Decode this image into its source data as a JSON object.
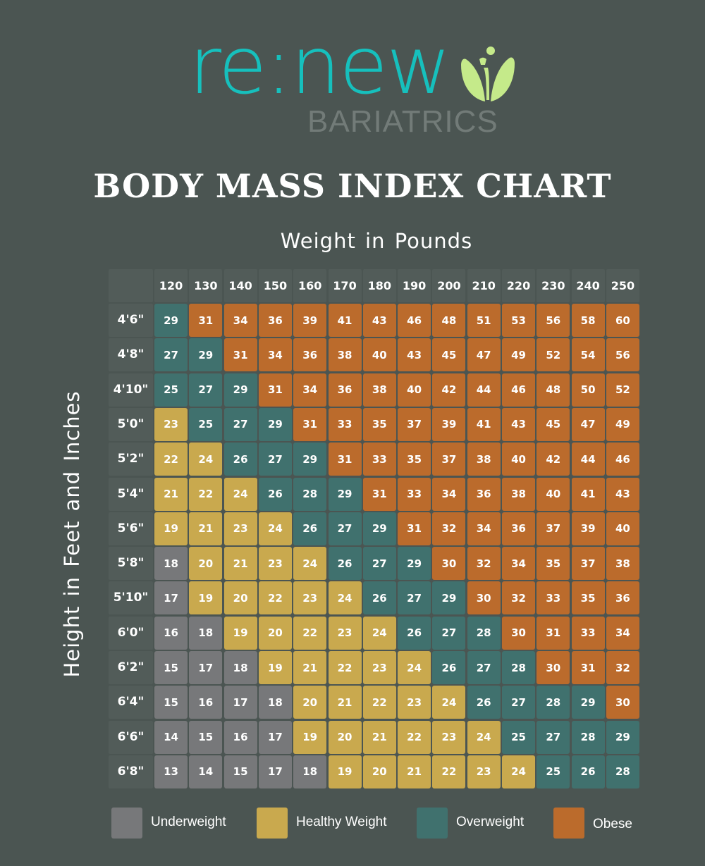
{
  "brand": {
    "name": "re:new",
    "subtitle": "BARIATRICS",
    "logo_icon": "sprout-leaves-icon",
    "colors": {
      "teal": "#16c0bd",
      "gray": "#727b78",
      "leaf": "#c5ea8a"
    }
  },
  "chart_data": {
    "type": "heatmap",
    "title": "BODY MASS INDEX CHART",
    "xlabel": "Weight in Pounds",
    "ylabel": "Height in Feet and Inches",
    "x": [
      "120",
      "130",
      "140",
      "150",
      "160",
      "170",
      "180",
      "190",
      "200",
      "210",
      "220",
      "230",
      "240",
      "250"
    ],
    "y": [
      "4'6\"",
      "4'8\"",
      "4'10\"",
      "5'0\"",
      "5'2\"",
      "5'4\"",
      "5'6\"",
      "5'8\"",
      "5'10\"",
      "6'0\"",
      "6'2\"",
      "6'4\"",
      "6'6\"",
      "6'8\""
    ],
    "values": [
      [
        29,
        31,
        34,
        36,
        39,
        41,
        43,
        46,
        48,
        51,
        53,
        56,
        58,
        60
      ],
      [
        27,
        29,
        31,
        34,
        36,
        38,
        40,
        43,
        45,
        47,
        49,
        52,
        54,
        56
      ],
      [
        25,
        27,
        29,
        31,
        34,
        36,
        38,
        40,
        42,
        44,
        46,
        48,
        50,
        52
      ],
      [
        23,
        25,
        27,
        29,
        31,
        33,
        35,
        37,
        39,
        41,
        43,
        45,
        47,
        49
      ],
      [
        22,
        24,
        26,
        27,
        29,
        31,
        33,
        35,
        37,
        38,
        40,
        42,
        44,
        46
      ],
      [
        21,
        22,
        24,
        26,
        28,
        29,
        31,
        33,
        34,
        36,
        38,
        40,
        41,
        43
      ],
      [
        19,
        21,
        23,
        24,
        26,
        27,
        29,
        31,
        32,
        34,
        36,
        37,
        39,
        40
      ],
      [
        18,
        20,
        21,
        23,
        24,
        26,
        27,
        29,
        30,
        32,
        34,
        35,
        37,
        38
      ],
      [
        17,
        19,
        20,
        22,
        23,
        24,
        26,
        27,
        29,
        30,
        32,
        33,
        35,
        36
      ],
      [
        16,
        18,
        19,
        20,
        22,
        23,
        24,
        26,
        27,
        28,
        30,
        31,
        33,
        34
      ],
      [
        15,
        17,
        18,
        19,
        21,
        22,
        23,
        24,
        26,
        27,
        28,
        30,
        31,
        32
      ],
      [
        15,
        16,
        17,
        18,
        20,
        21,
        22,
        23,
        24,
        26,
        27,
        28,
        29,
        30
      ],
      [
        14,
        15,
        16,
        17,
        19,
        20,
        21,
        22,
        23,
        24,
        25,
        27,
        28,
        29
      ],
      [
        13,
        14,
        15,
        17,
        18,
        19,
        20,
        21,
        22,
        23,
        24,
        25,
        26,
        28
      ]
    ],
    "categories": [
      {
        "name": "Underweight",
        "color": "#77787a"
      },
      {
        "name": "Healthy Weight",
        "color": "#c9a94e"
      },
      {
        "name": "Overweight",
        "color": "#40716e"
      },
      {
        "name": "Obese",
        "color": "#bb6b2c"
      }
    ],
    "legend": "bottom",
    "grid": false
  },
  "colors": {
    "background": "#4b5552",
    "header_cell": "#525c59"
  }
}
